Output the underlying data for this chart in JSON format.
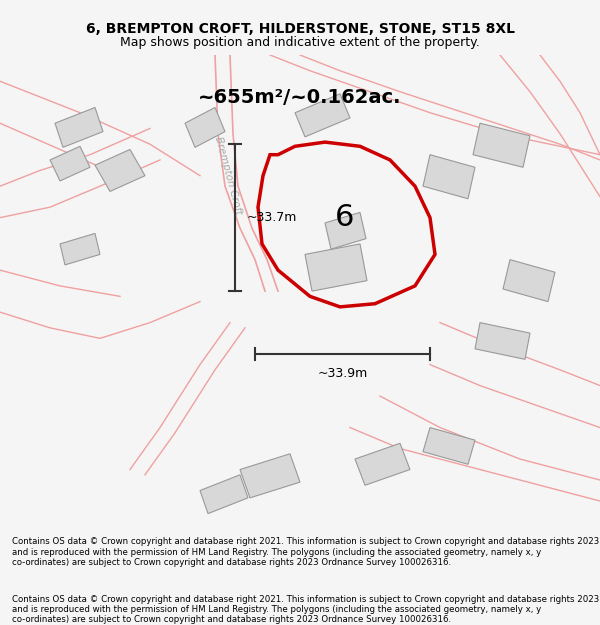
{
  "title_line1": "6, BREMPTON CROFT, HILDERSTONE, STONE, ST15 8XL",
  "title_line2": "Map shows position and indicative extent of the property.",
  "area_label": "~655m²/~0.162ac.",
  "plot_number": "6",
  "dim_vertical": "~33.7m",
  "dim_horizontal": "~33.9m",
  "road_label": "Brempton Croft",
  "footer_text": "Contains OS data © Crown copyright and database right 2021. This information is subject to Crown copyright and database rights 2023 and is reproduced with the permission of HM Land Registry. The polygons (including the associated geometry, namely x, y co-ordinates) are subject to Crown copyright and database rights 2023 Ordnance Survey 100026316.",
  "bg_color": "#f5f5f5",
  "map_bg": "#ffffff",
  "plot_fill": "#ffffff",
  "plot_edge": "#cc0000",
  "building_fill": "#d8d8d8",
  "building_edge": "#999999",
  "road_color": "#f0a0a0",
  "dim_line_color": "#333333"
}
